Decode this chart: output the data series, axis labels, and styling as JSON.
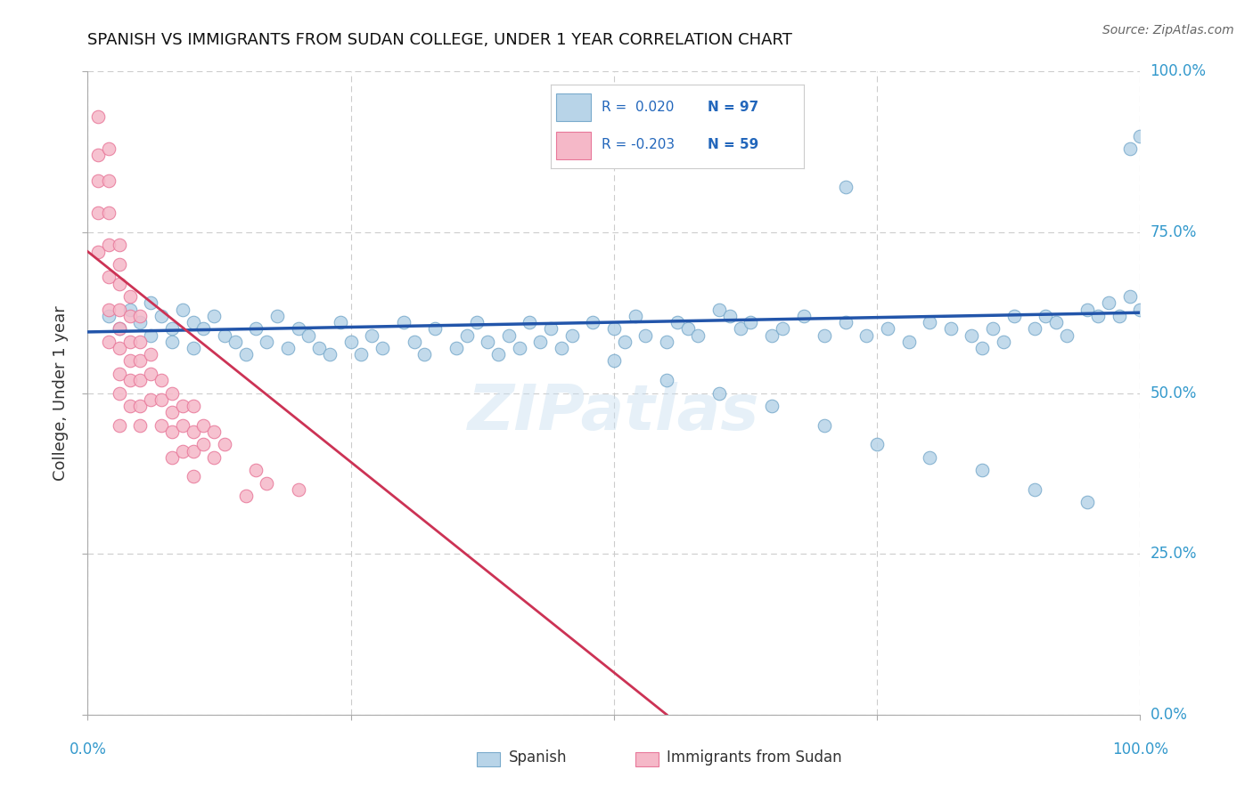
{
  "title": "SPANISH VS IMMIGRANTS FROM SUDAN COLLEGE, UNDER 1 YEAR CORRELATION CHART",
  "source": "Source: ZipAtlas.com",
  "ylabel": "College, Under 1 year",
  "blue_R": "0.020",
  "blue_N": "97",
  "pink_R": "-0.203",
  "pink_N": "59",
  "blue_color": "#b8d4e8",
  "pink_color": "#f5b8c8",
  "blue_edge": "#7aabcc",
  "pink_edge": "#e8789a",
  "trend_blue_color": "#2255aa",
  "trend_pink_color": "#cc3355",
  "background": "#ffffff",
  "grid_color": "#cccccc",
  "text_color_blue": "#3399cc",
  "text_color_dark": "#333333",
  "source_color": "#666666",
  "legend_R_color": "#2266bb",
  "legend_N_color": "#2266bb",
  "blue_x": [
    0.02,
    0.03,
    0.04,
    0.05,
    0.06,
    0.06,
    0.07,
    0.08,
    0.08,
    0.09,
    0.1,
    0.1,
    0.11,
    0.12,
    0.13,
    0.14,
    0.15,
    0.16,
    0.17,
    0.18,
    0.19,
    0.2,
    0.21,
    0.22,
    0.23,
    0.24,
    0.25,
    0.26,
    0.27,
    0.28,
    0.3,
    0.31,
    0.32,
    0.33,
    0.35,
    0.36,
    0.37,
    0.38,
    0.39,
    0.4,
    0.41,
    0.42,
    0.43,
    0.44,
    0.45,
    0.46,
    0.48,
    0.5,
    0.51,
    0.52,
    0.53,
    0.55,
    0.56,
    0.57,
    0.58,
    0.6,
    0.61,
    0.62,
    0.63,
    0.65,
    0.66,
    0.68,
    0.7,
    0.72,
    0.74,
    0.76,
    0.78,
    0.8,
    0.82,
    0.84,
    0.85,
    0.86,
    0.87,
    0.88,
    0.9,
    0.91,
    0.92,
    0.93,
    0.95,
    0.96,
    0.97,
    0.98,
    0.99,
    1.0,
    0.99,
    1.0,
    0.72,
    0.5,
    0.55,
    0.6,
    0.65,
    0.7,
    0.75,
    0.8,
    0.85,
    0.9,
    0.95
  ],
  "blue_y": [
    0.62,
    0.6,
    0.63,
    0.61,
    0.59,
    0.64,
    0.62,
    0.6,
    0.58,
    0.63,
    0.61,
    0.57,
    0.6,
    0.62,
    0.59,
    0.58,
    0.56,
    0.6,
    0.58,
    0.62,
    0.57,
    0.6,
    0.59,
    0.57,
    0.56,
    0.61,
    0.58,
    0.56,
    0.59,
    0.57,
    0.61,
    0.58,
    0.56,
    0.6,
    0.57,
    0.59,
    0.61,
    0.58,
    0.56,
    0.59,
    0.57,
    0.61,
    0.58,
    0.6,
    0.57,
    0.59,
    0.61,
    0.6,
    0.58,
    0.62,
    0.59,
    0.58,
    0.61,
    0.6,
    0.59,
    0.63,
    0.62,
    0.6,
    0.61,
    0.59,
    0.6,
    0.62,
    0.59,
    0.61,
    0.59,
    0.6,
    0.58,
    0.61,
    0.6,
    0.59,
    0.57,
    0.6,
    0.58,
    0.62,
    0.6,
    0.62,
    0.61,
    0.59,
    0.63,
    0.62,
    0.64,
    0.62,
    0.65,
    0.63,
    0.88,
    0.9,
    0.82,
    0.55,
    0.52,
    0.5,
    0.48,
    0.45,
    0.42,
    0.4,
    0.38,
    0.35,
    0.33
  ],
  "pink_x": [
    0.01,
    0.01,
    0.01,
    0.01,
    0.01,
    0.02,
    0.02,
    0.02,
    0.02,
    0.02,
    0.02,
    0.02,
    0.03,
    0.03,
    0.03,
    0.03,
    0.03,
    0.03,
    0.03,
    0.03,
    0.03,
    0.04,
    0.04,
    0.04,
    0.04,
    0.04,
    0.04,
    0.05,
    0.05,
    0.05,
    0.05,
    0.05,
    0.05,
    0.06,
    0.06,
    0.06,
    0.07,
    0.07,
    0.07,
    0.08,
    0.08,
    0.08,
    0.08,
    0.09,
    0.09,
    0.09,
    0.1,
    0.1,
    0.1,
    0.1,
    0.11,
    0.11,
    0.12,
    0.12,
    0.13,
    0.15,
    0.16,
    0.17,
    0.2
  ],
  "pink_y": [
    0.93,
    0.87,
    0.83,
    0.78,
    0.72,
    0.88,
    0.83,
    0.78,
    0.73,
    0.68,
    0.63,
    0.58,
    0.73,
    0.7,
    0.67,
    0.63,
    0.6,
    0.57,
    0.53,
    0.5,
    0.45,
    0.65,
    0.62,
    0.58,
    0.55,
    0.52,
    0.48,
    0.62,
    0.58,
    0.55,
    0.52,
    0.48,
    0.45,
    0.56,
    0.53,
    0.49,
    0.52,
    0.49,
    0.45,
    0.5,
    0.47,
    0.44,
    0.4,
    0.48,
    0.45,
    0.41,
    0.48,
    0.44,
    0.41,
    0.37,
    0.45,
    0.42,
    0.44,
    0.4,
    0.42,
    0.34,
    0.38,
    0.36,
    0.35
  ],
  "blue_trend_x": [
    0.0,
    1.0
  ],
  "blue_trend_y": [
    0.595,
    0.625
  ],
  "pink_trend_x_start": 0.0,
  "pink_trend_x_end": 0.55,
  "pink_trend_y_start": 0.72,
  "pink_trend_y_end": 0.0,
  "xlim": [
    0.0,
    1.0
  ],
  "ylim": [
    0.0,
    1.0
  ]
}
